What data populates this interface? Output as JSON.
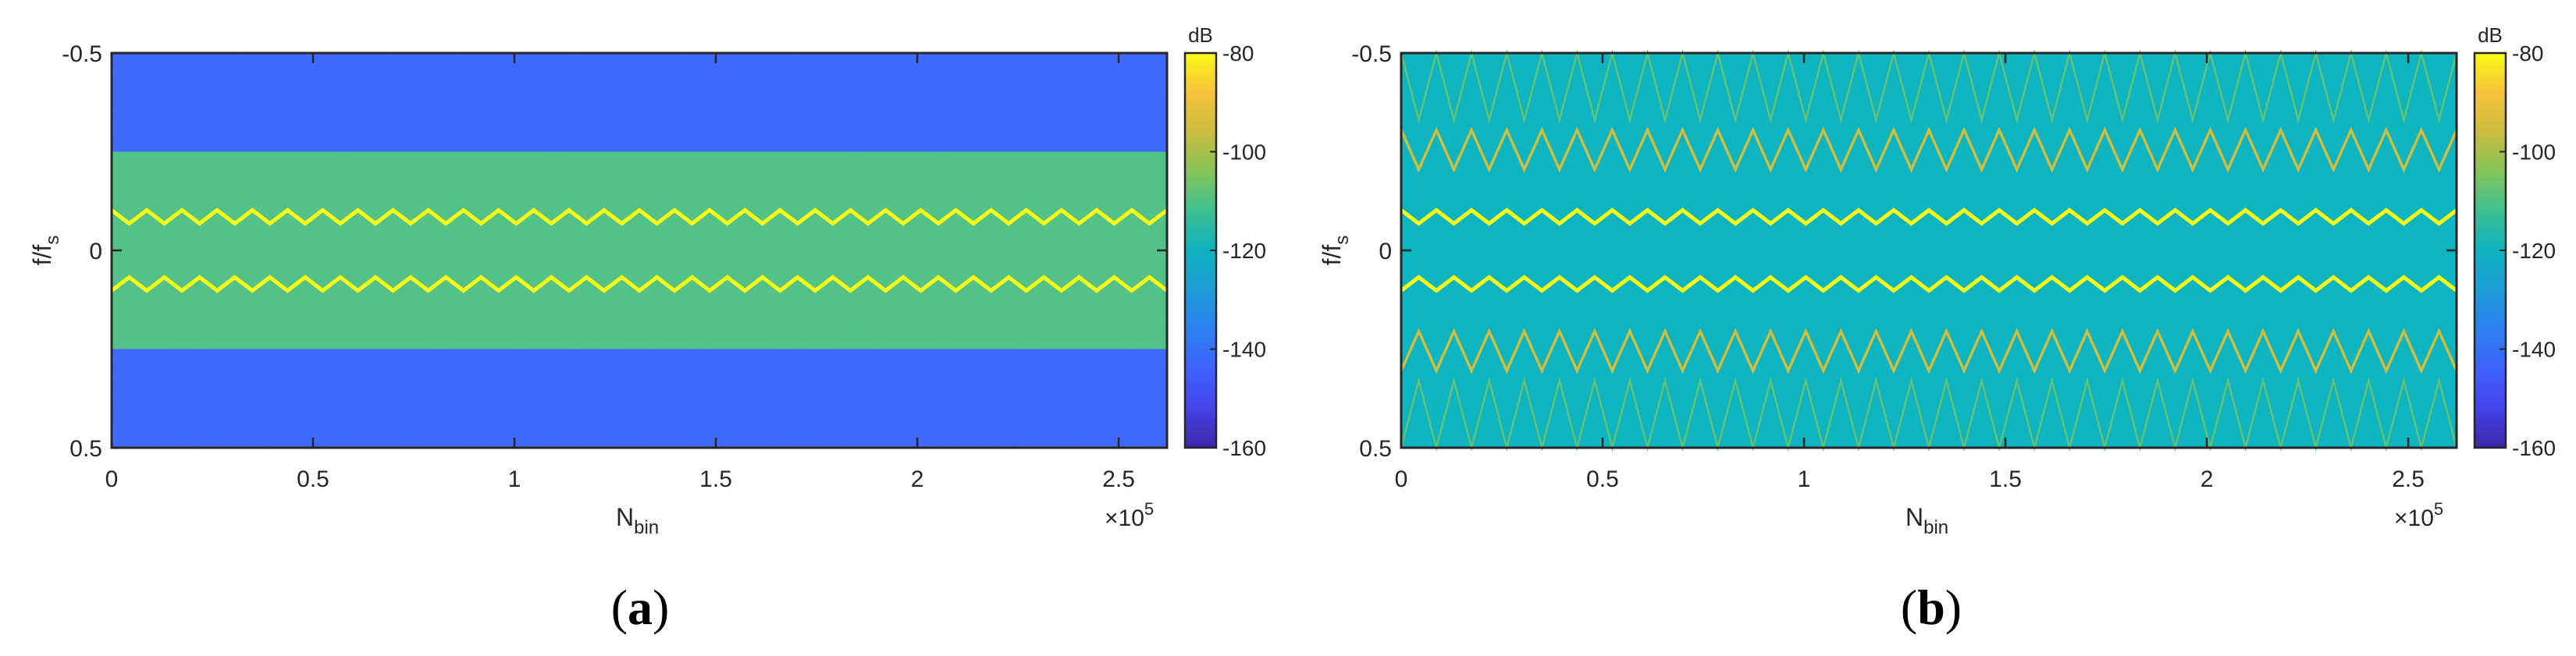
{
  "chart_data": [
    {
      "type": "heatmap",
      "panel_label": "a",
      "title": "",
      "xlabel": "N",
      "xlabel_sub": "bin",
      "ylabel": "f/f",
      "ylabel_sub": "s",
      "x_exponent_label": "×10",
      "x_exponent": "5",
      "xlim": [
        0,
        2.62
      ],
      "ylim": [
        -0.5,
        0.5
      ],
      "y_reversed": true,
      "xticks": [
        0,
        0.5,
        1,
        1.5,
        2,
        2.5
      ],
      "xtick_labels": [
        "0",
        "0.5",
        "1",
        "1.5",
        "2",
        "2.5"
      ],
      "yticks": [
        -0.5,
        0,
        0.5
      ],
      "ytick_labels": [
        "-0.5",
        "0",
        "0.5"
      ],
      "colorbar": {
        "label": "dB",
        "min": -160,
        "max": -80,
        "ticks": [
          -80,
          -100,
          -120,
          -140,
          -160
        ],
        "tick_labels": [
          "-80",
          "-100",
          "-120",
          "-140",
          "-160"
        ]
      },
      "regions": [
        {
          "f_start": -0.5,
          "f_end": -0.25,
          "level_db": -143
        },
        {
          "f_start": -0.25,
          "f_end": 0.25,
          "level_db": -110
        },
        {
          "f_start": 0.25,
          "f_end": 0.5,
          "level_db": -143
        }
      ],
      "tones": [
        {
          "center_f": -0.085,
          "amplitude_f": 0.017,
          "cycles": 30,
          "level_db": -80
        },
        {
          "center_f": 0.085,
          "amplitude_f": 0.017,
          "cycles": 30,
          "level_db": -80
        }
      ]
    },
    {
      "type": "heatmap",
      "panel_label": "b",
      "title": "",
      "xlabel": "N",
      "xlabel_sub": "bin",
      "ylabel": "f/f",
      "ylabel_sub": "s",
      "x_exponent_label": "×10",
      "x_exponent": "5",
      "xlim": [
        0,
        2.62
      ],
      "ylim": [
        -0.5,
        0.5
      ],
      "y_reversed": true,
      "xticks": [
        0,
        0.5,
        1,
        1.5,
        2,
        2.5
      ],
      "xtick_labels": [
        "0",
        "0.5",
        "1",
        "1.5",
        "2",
        "2.5"
      ],
      "yticks": [
        -0.5,
        0,
        0.5
      ],
      "ytick_labels": [
        "-0.5",
        "0",
        "0.5"
      ],
      "colorbar": {
        "label": "dB",
        "min": -160,
        "max": -80,
        "ticks": [
          -80,
          -100,
          -120,
          -140,
          -160
        ],
        "tick_labels": [
          "-80",
          "-100",
          "-120",
          "-140",
          "-160"
        ]
      },
      "regions": [
        {
          "f_start": -0.5,
          "f_end": 0.5,
          "level_db": -120
        }
      ],
      "tones": [
        {
          "center_f": -0.085,
          "amplitude_f": 0.017,
          "cycles": 30,
          "level_db": -80
        },
        {
          "center_f": 0.085,
          "amplitude_f": 0.017,
          "cycles": 30,
          "level_db": -80
        },
        {
          "center_f": -0.255,
          "amplitude_f": 0.05,
          "cycles": 30,
          "level_db": -95
        },
        {
          "center_f": 0.255,
          "amplitude_f": 0.05,
          "cycles": 30,
          "level_db": -95
        },
        {
          "center_f": -0.415,
          "amplitude_f": 0.085,
          "cycles": 30,
          "level_db": -108
        },
        {
          "center_f": 0.415,
          "amplitude_f": 0.085,
          "cycles": 30,
          "level_db": -108
        }
      ]
    }
  ]
}
